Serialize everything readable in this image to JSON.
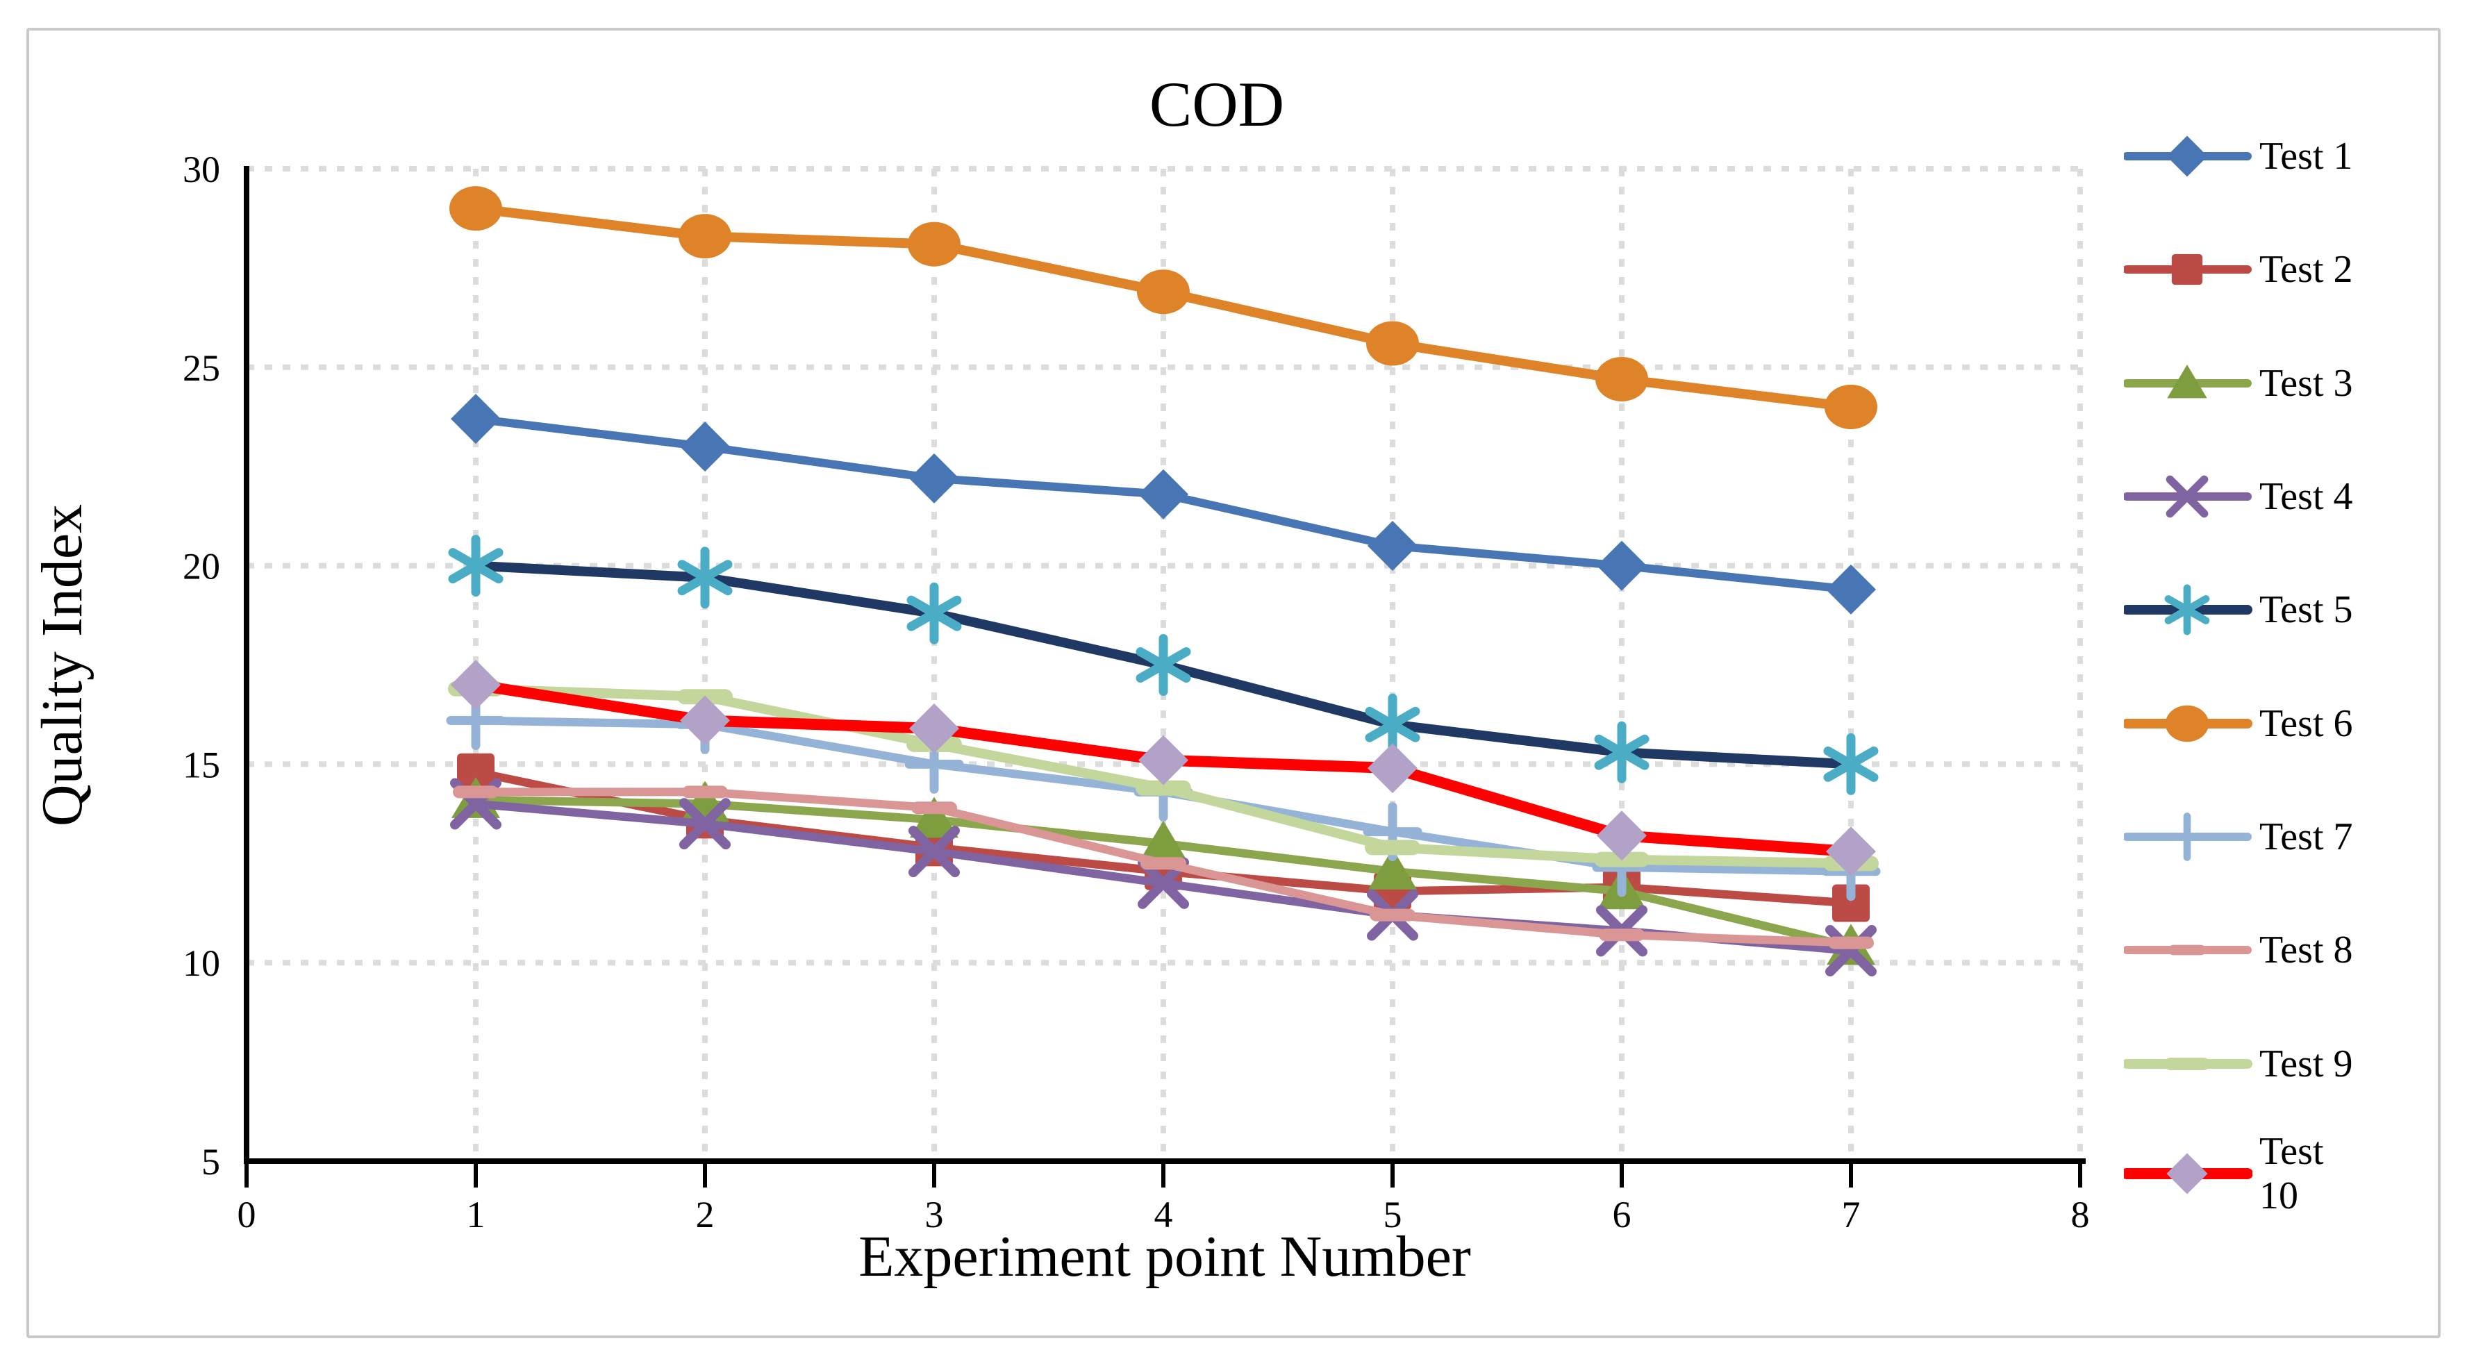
{
  "figure": {
    "background": "#ffffff",
    "border_color": "#c9c9c9",
    "gridline_color": "#dcdcdc",
    "axis_color": "#000000"
  },
  "chart_data": {
    "type": "line",
    "title": "COD",
    "xlabel": "Experiment point Number",
    "ylabel": "Quality Index",
    "x": [
      1,
      2,
      3,
      4,
      5,
      6,
      7
    ],
    "xlim": [
      0,
      8
    ],
    "ylim": [
      5,
      30
    ],
    "x_ticks": [
      0,
      1,
      2,
      3,
      4,
      5,
      6,
      7,
      8
    ],
    "y_ticks": [
      5,
      10,
      15,
      20,
      25,
      30
    ],
    "grid": "dashed-both-axes",
    "legend_position": "right",
    "series": [
      {
        "name": "Test 1",
        "marker": "diamond",
        "line_color": "#4876B4",
        "marker_color": "#4876B4",
        "line_width": 12,
        "values": [
          23.7,
          23.0,
          22.2,
          21.8,
          20.5,
          20.0,
          19.4
        ]
      },
      {
        "name": "Test 2",
        "marker": "square",
        "line_color": "#BD4B45",
        "marker_color": "#BD4B45",
        "line_width": 12,
        "values": [
          14.8,
          13.6,
          12.9,
          12.3,
          11.8,
          11.9,
          11.5
        ]
      },
      {
        "name": "Test 3",
        "marker": "triangle",
        "line_color": "#8CA64E",
        "marker_color": "#7E9D3F",
        "line_width": 12,
        "values": [
          14.1,
          14.0,
          13.6,
          13.0,
          12.3,
          11.8,
          10.4
        ]
      },
      {
        "name": "Test 4",
        "marker": "xmark",
        "line_color": "#8064A2",
        "marker_color": "#8064A2",
        "line_width": 12,
        "values": [
          14.0,
          13.5,
          12.8,
          12.0,
          11.2,
          10.8,
          10.3
        ]
      },
      {
        "name": "Test 5",
        "marker": "asterisk",
        "line_color": "#1F3864",
        "marker_color": "#4BACC6",
        "line_width": 14,
        "values": [
          20.0,
          19.7,
          18.8,
          17.5,
          16.0,
          15.3,
          15.0
        ]
      },
      {
        "name": "Test 6",
        "marker": "circle",
        "line_color": "#DE8327",
        "marker_color": "#DE8327",
        "line_width": 14,
        "values": [
          29.0,
          28.3,
          28.1,
          26.9,
          25.6,
          24.7,
          24.0
        ]
      },
      {
        "name": "Test 7",
        "marker": "plus",
        "line_color": "#95B3D7",
        "marker_color": "#95B3D7",
        "line_width": 12,
        "values": [
          16.1,
          16.0,
          15.0,
          14.3,
          13.3,
          12.4,
          12.3
        ]
      },
      {
        "name": "Test 8",
        "marker": "dash-small",
        "line_color": "#D99694",
        "marker_color": "#D99694",
        "line_width": 12,
        "values": [
          14.3,
          14.3,
          13.9,
          12.5,
          11.2,
          10.7,
          10.5
        ]
      },
      {
        "name": "Test 9",
        "marker": "dash",
        "line_color": "#C3D69B",
        "marker_color": "#C3D69B",
        "line_width": 14,
        "values": [
          16.9,
          16.7,
          15.5,
          14.4,
          12.9,
          12.6,
          12.5
        ]
      },
      {
        "name": "Test 10",
        "marker": "diamond",
        "line_color": "#FF0000",
        "marker_color": "#B3A2C7",
        "line_width": 16,
        "values": [
          17.0,
          16.1,
          15.9,
          15.1,
          14.9,
          13.2,
          12.8
        ]
      }
    ]
  },
  "legend": {
    "items": [
      "Test 1",
      "Test 2",
      "Test 3",
      "Test 4",
      "Test 5",
      "Test 6",
      "Test 7",
      "Test 8",
      "Test 9",
      "Test 10"
    ]
  }
}
